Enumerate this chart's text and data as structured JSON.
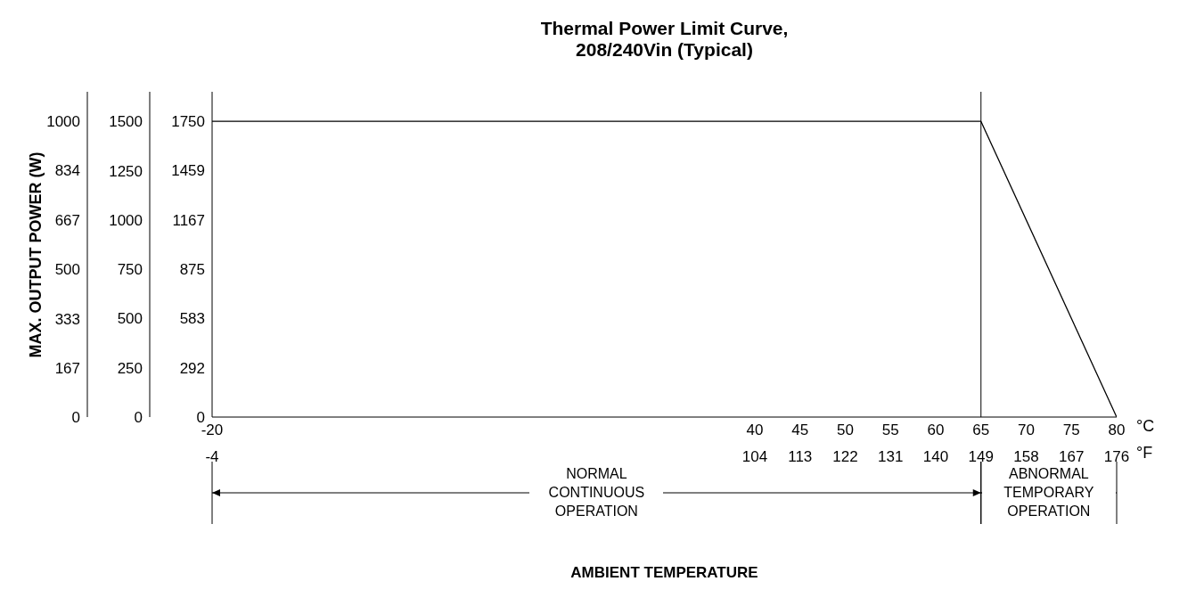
{
  "chart_data": {
    "type": "line",
    "title": "Thermal Power Limit  Curve,\n208/240Vin (Typical)",
    "ylabel": "MAX. OUTPUT POWER (W)",
    "series": [
      {
        "x": [
          -20,
          65,
          80
        ],
        "values": [
          1000,
          1000,
          0
        ],
        "color": "#000000"
      }
    ],
    "xlim": [
      -20,
      80
    ],
    "xticks": [
      -20,
      40,
      45,
      50,
      55,
      60,
      65,
      70,
      75,
      80
    ],
    "x2lim": [
      -4,
      176
    ],
    "x2ticks": [
      -4,
      104,
      113,
      122,
      131,
      140,
      149,
      158,
      167,
      176
    ],
    "ylim": [
      0,
      1100
    ],
    "yticks": [
      0,
      167,
      333,
      500,
      667,
      834,
      1000
    ],
    "y2lim": [
      0,
      1650
    ],
    "y2ticks": [
      0,
      250,
      500,
      750,
      1000,
      1250,
      1500
    ],
    "y3lim": [
      0,
      1925
    ],
    "y3ticks": [
      0,
      292,
      583,
      875,
      1167,
      1459,
      1750
    ],
    "ref_lines": [
      {
        "axis": "x",
        "value": 65,
        "color": "#000000"
      }
    ],
    "annotations": [
      "°C",
      "°F",
      "NORMAL\nCONTINUOUS\nOPERATION",
      "ABNORMAL\nTEMPORARY\nOPERATION",
      "AMBIENT TEMPERATURE"
    ],
    "grid": false,
    "legend": false,
    "marker": "none",
    "line_style": "solid"
  }
}
